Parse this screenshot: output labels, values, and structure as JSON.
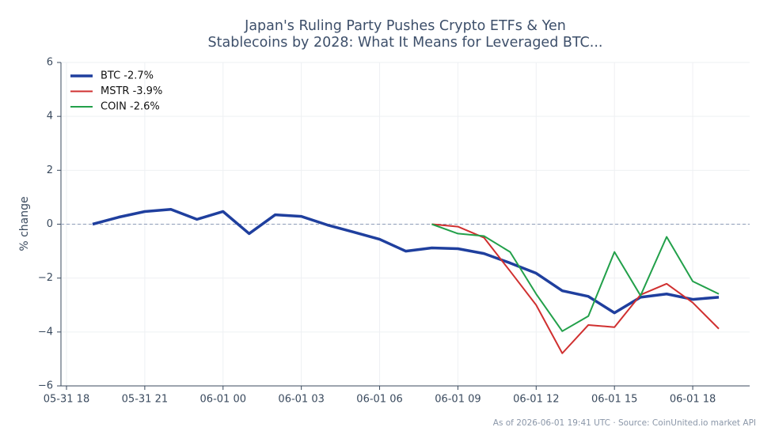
{
  "chart_data": {
    "type": "line",
    "title": [
      "Japan's Ruling Party Pushes Crypto ETFs & Yen",
      "Stablecoins by 2028: What It Means for Leveraged BTC..."
    ],
    "ylabel": "% change",
    "footnote": "As of 2026-06-01 19:41 UTC · Source: CoinUnited.io market API",
    "x": [
      "05-31 19",
      "05-31 20",
      "05-31 21",
      "05-31 22",
      "05-31 23",
      "06-01 00",
      "06-01 01",
      "06-01 02",
      "06-01 03",
      "06-01 04",
      "06-01 05",
      "06-01 06",
      "06-01 07",
      "06-01 08",
      "06-01 09",
      "06-01 10",
      "06-01 11",
      "06-01 12",
      "06-01 13",
      "06-01 14",
      "06-01 15",
      "06-01 16",
      "06-01 17",
      "06-01 18",
      "06-01 19"
    ],
    "series": [
      {
        "name": "BTC -2.7%",
        "color": "#1f3f9e",
        "width": 3.5,
        "values": [
          0,
          0.26,
          0.47,
          0.55,
          0.18,
          0.47,
          -0.35,
          0.35,
          0.29,
          -0.03,
          -0.29,
          -0.56,
          -1.0,
          -0.88,
          -0.91,
          -1.09,
          -1.44,
          -1.82,
          -2.47,
          -2.68,
          -3.29,
          -2.71,
          -2.59,
          -2.79,
          -2.71
        ]
      },
      {
        "name": "MSTR -3.9%",
        "color": "#d03030",
        "width": 2,
        "values": [
          null,
          null,
          null,
          null,
          null,
          null,
          null,
          null,
          null,
          null,
          null,
          null,
          null,
          0,
          -0.09,
          -0.5,
          -1.74,
          -3.0,
          -4.79,
          -3.74,
          -3.82,
          -2.62,
          -2.21,
          -2.91,
          -3.88
        ]
      },
      {
        "name": "COIN -2.6%",
        "color": "#22a04a",
        "width": 2,
        "values": [
          null,
          null,
          null,
          null,
          null,
          null,
          null,
          null,
          null,
          null,
          null,
          null,
          null,
          0,
          -0.35,
          -0.44,
          -1.03,
          -2.59,
          -3.97,
          -3.41,
          -1.03,
          -2.65,
          -0.47,
          -2.12,
          -2.59
        ]
      }
    ],
    "xlim": [
      "05-31 18",
      "06-01 20"
    ],
    "xticks": [
      "05-31 18",
      "05-31 21",
      "06-01 00",
      "06-01 03",
      "06-01 06",
      "06-01 09",
      "06-01 12",
      "06-01 15",
      "06-01 18"
    ],
    "ylim": [
      -6,
      6
    ],
    "yticks": [
      {
        "value": -6,
        "label": "−6"
      },
      {
        "value": -4,
        "label": "−4"
      },
      {
        "value": -2,
        "label": "−2"
      },
      0,
      2,
      4,
      6
    ],
    "reference_line": 0,
    "grid": true,
    "legend": "upper left"
  }
}
